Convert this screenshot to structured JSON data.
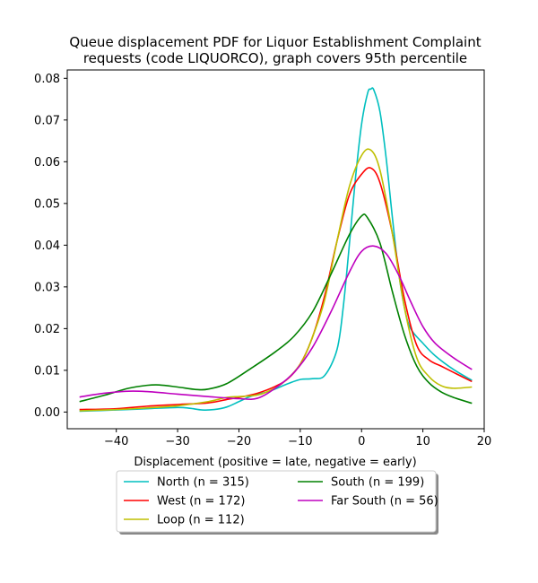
{
  "chart_data": {
    "type": "line",
    "title_line1": "Queue displacement PDF for Liquor Establishment Complaint",
    "title_line2": "requests (code LIQUORCO), graph covers 95th percentile",
    "xlabel": "Displacement (positive = late, negative = early)",
    "ylabel": "",
    "xlim": [
      -48,
      20
    ],
    "ylim": [
      -0.004,
      0.082
    ],
    "x_ticks": [
      -40,
      -30,
      -20,
      -10,
      0,
      10,
      20
    ],
    "x_tick_labels": [
      "−40",
      "−30",
      "−20",
      "−10",
      "0",
      "10",
      "20"
    ],
    "y_ticks": [
      0.0,
      0.01,
      0.02,
      0.03,
      0.04,
      0.05,
      0.06,
      0.07,
      0.08
    ],
    "y_tick_labels": [
      "0.00",
      "0.01",
      "0.02",
      "0.03",
      "0.04",
      "0.05",
      "0.06",
      "0.07",
      "0.08"
    ],
    "grid": false,
    "legend_placement": "below",
    "legend_columns": 2,
    "series": [
      {
        "name": "North (n = 315)",
        "color": "#00bfbf",
        "points": [
          [
            -46,
            0.0002
          ],
          [
            -40,
            0.0005
          ],
          [
            -35,
            0.0008
          ],
          [
            -30,
            0.0011
          ],
          [
            -28,
            0.0009
          ],
          [
            -26,
            0.0005
          ],
          [
            -24,
            0.0006
          ],
          [
            -22,
            0.0012
          ],
          [
            -20,
            0.0025
          ],
          [
            -18,
            0.0038
          ],
          [
            -15,
            0.005
          ],
          [
            -12,
            0.0068
          ],
          [
            -10,
            0.0078
          ],
          [
            -8,
            0.008
          ],
          [
            -6,
            0.0088
          ],
          [
            -4,
            0.015
          ],
          [
            -3,
            0.025
          ],
          [
            -2,
            0.04
          ],
          [
            -1,
            0.056
          ],
          [
            0,
            0.069
          ],
          [
            1,
            0.0765
          ],
          [
            1.5,
            0.0774
          ],
          [
            2,
            0.0772
          ],
          [
            3,
            0.072
          ],
          [
            4,
            0.061
          ],
          [
            5,
            0.047
          ],
          [
            6,
            0.034
          ],
          [
            7,
            0.025
          ],
          [
            8,
            0.02
          ],
          [
            10,
            0.0165
          ],
          [
            12,
            0.0135
          ],
          [
            15,
            0.0102
          ],
          [
            18,
            0.0076
          ]
        ]
      },
      {
        "name": "West (n = 172)",
        "color": "#ff0000",
        "points": [
          [
            -46,
            0.0006
          ],
          [
            -40,
            0.0008
          ],
          [
            -35,
            0.0014
          ],
          [
            -30,
            0.0018
          ],
          [
            -25,
            0.0022
          ],
          [
            -22,
            0.003
          ],
          [
            -20,
            0.0035
          ],
          [
            -17,
            0.0045
          ],
          [
            -14,
            0.0062
          ],
          [
            -12,
            0.008
          ],
          [
            -10,
            0.0115
          ],
          [
            -8,
            0.018
          ],
          [
            -6,
            0.028
          ],
          [
            -4,
            0.041
          ],
          [
            -2,
            0.052
          ],
          [
            0,
            0.057
          ],
          [
            1.5,
            0.0585
          ],
          [
            3,
            0.055
          ],
          [
            5,
            0.043
          ],
          [
            7,
            0.027
          ],
          [
            9,
            0.016
          ],
          [
            11,
            0.0125
          ],
          [
            13,
            0.011
          ],
          [
            15,
            0.0095
          ],
          [
            18,
            0.0073
          ]
        ]
      },
      {
        "name": "Loop (n = 112)",
        "color": "#bfbf00",
        "points": [
          [
            -46,
            0.0003
          ],
          [
            -40,
            0.0006
          ],
          [
            -35,
            0.001
          ],
          [
            -30,
            0.0015
          ],
          [
            -25,
            0.0025
          ],
          [
            -22,
            0.0035
          ],
          [
            -20,
            0.0037
          ],
          [
            -18,
            0.0039
          ],
          [
            -16,
            0.0045
          ],
          [
            -13,
            0.0068
          ],
          [
            -10,
            0.0115
          ],
          [
            -8,
            0.018
          ],
          [
            -6,
            0.027
          ],
          [
            -4,
            0.041
          ],
          [
            -2,
            0.054
          ],
          [
            0,
            0.0615
          ],
          [
            1.5,
            0.0628
          ],
          [
            3,
            0.058
          ],
          [
            5,
            0.043
          ],
          [
            7,
            0.025
          ],
          [
            9,
            0.013
          ],
          [
            11,
            0.0085
          ],
          [
            13,
            0.0063
          ],
          [
            15,
            0.0057
          ],
          [
            18,
            0.006
          ]
        ]
      },
      {
        "name": "South (n = 199)",
        "color": "#008000",
        "points": [
          [
            -46,
            0.0025
          ],
          [
            -42,
            0.004
          ],
          [
            -38,
            0.0057
          ],
          [
            -35,
            0.0064
          ],
          [
            -33,
            0.0065
          ],
          [
            -30,
            0.006
          ],
          [
            -27,
            0.0054
          ],
          [
            -25,
            0.0055
          ],
          [
            -22,
            0.0068
          ],
          [
            -18,
            0.0105
          ],
          [
            -14,
            0.0145
          ],
          [
            -11,
            0.0182
          ],
          [
            -8,
            0.024
          ],
          [
            -5,
            0.033
          ],
          [
            -2,
            0.0425
          ],
          [
            0,
            0.047
          ],
          [
            1,
            0.0465
          ],
          [
            3,
            0.0405
          ],
          [
            5,
            0.029
          ],
          [
            7,
            0.0185
          ],
          [
            9,
            0.011
          ],
          [
            11,
            0.007
          ],
          [
            13,
            0.0048
          ],
          [
            15,
            0.0035
          ],
          [
            18,
            0.0021
          ]
        ]
      },
      {
        "name": "Far South (n = 56)",
        "color": "#bf00bf",
        "points": [
          [
            -46,
            0.0036
          ],
          [
            -42,
            0.0045
          ],
          [
            -38,
            0.005
          ],
          [
            -35,
            0.0049
          ],
          [
            -30,
            0.0043
          ],
          [
            -25,
            0.0037
          ],
          [
            -20,
            0.0032
          ],
          [
            -17,
            0.0033
          ],
          [
            -14,
            0.0058
          ],
          [
            -11,
            0.0095
          ],
          [
            -8,
            0.0155
          ],
          [
            -5,
            0.024
          ],
          [
            -2,
            0.0335
          ],
          [
            0,
            0.0385
          ],
          [
            2,
            0.0398
          ],
          [
            4,
            0.038
          ],
          [
            6,
            0.033
          ],
          [
            8,
            0.0265
          ],
          [
            10,
            0.0205
          ],
          [
            12,
            0.0165
          ],
          [
            15,
            0.013
          ],
          [
            18,
            0.0102
          ]
        ]
      }
    ]
  }
}
